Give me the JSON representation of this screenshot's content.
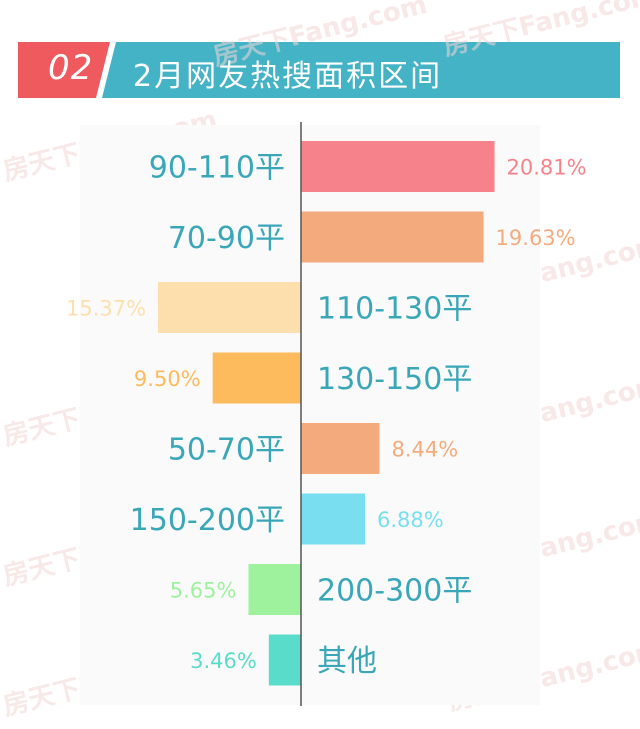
{
  "header": {
    "badge": "02",
    "title": "2月网友热搜面积区间",
    "badge_color": "#ef5a5f",
    "bar_color": "#45b3c6"
  },
  "watermark": {
    "text": "房天下Fang.com"
  },
  "chart_data": {
    "type": "bar",
    "orientation": "horizontal",
    "title": "2月网友热搜面积区间",
    "categories": [
      "90-110平",
      "70-90平",
      "110-130平",
      "130-150平",
      "50-70平",
      "150-200平",
      "200-300平",
      "其他"
    ],
    "values": [
      20.81,
      19.63,
      15.37,
      9.5,
      8.44,
      6.88,
      5.65,
      3.46
    ],
    "value_labels": [
      "20.81%",
      "19.63%",
      "15.37%",
      "9.50%",
      "8.44%",
      "6.88%",
      "5.65%",
      "3.46%"
    ],
    "sides": [
      "right",
      "right",
      "left",
      "left",
      "right",
      "right",
      "left",
      "left"
    ],
    "colors": [
      "#f6838b",
      "#f3ab7e",
      "#fddfae",
      "#fdbb5d",
      "#f3ab7e",
      "#79dff0",
      "#9ef29d",
      "#59dcc9"
    ],
    "category_label_color": "#3aa7b8",
    "ylim": [
      0,
      25
    ]
  }
}
